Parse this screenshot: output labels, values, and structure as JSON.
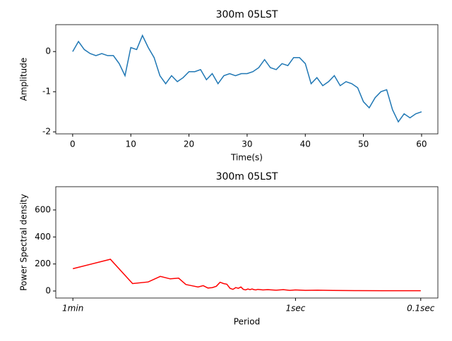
{
  "chart_data": [
    {
      "type": "line",
      "title": "300m 05LST",
      "xlabel": "Time(s)",
      "ylabel": "Amplitude",
      "color": "#1f77b4",
      "x": [
        0,
        1,
        2,
        3,
        4,
        5,
        6,
        7,
        8,
        9,
        10,
        11,
        12,
        13,
        14,
        15,
        16,
        17,
        18,
        19,
        20,
        21,
        22,
        23,
        24,
        25,
        26,
        27,
        28,
        29,
        30,
        31,
        32,
        33,
        34,
        35,
        36,
        37,
        38,
        39,
        40,
        41,
        42,
        43,
        44,
        45,
        46,
        47,
        48,
        49,
        50,
        51,
        52,
        53,
        54,
        55,
        56,
        57,
        58,
        59,
        60
      ],
      "values": [
        0,
        0.25,
        0.05,
        -0.05,
        -0.1,
        -0.05,
        -0.1,
        -0.1,
        -0.3,
        -0.6,
        0.1,
        0.05,
        0.4,
        0.1,
        -0.15,
        -0.6,
        -0.8,
        -0.6,
        -0.75,
        -0.65,
        -0.5,
        -0.5,
        -0.45,
        -0.7,
        -0.55,
        -0.8,
        -0.6,
        -0.55,
        -0.6,
        -0.55,
        -0.55,
        -0.5,
        -0.4,
        -0.2,
        -0.4,
        -0.45,
        -0.3,
        -0.35,
        -0.15,
        -0.15,
        -0.3,
        -0.8,
        -0.65,
        -0.85,
        -0.75,
        -0.6,
        -0.85,
        -0.75,
        -0.8,
        -0.9,
        -1.25,
        -1.4,
        -1.15,
        -1.0,
        -0.95,
        -1.45,
        -1.75,
        -1.55,
        -1.65,
        -1.55,
        -1.5
      ],
      "xlim": [
        -2.9,
        62.8
      ],
      "xticks": [
        0,
        10,
        20,
        30,
        40,
        50,
        60
      ],
      "ylim": [
        -2.05,
        0.67
      ],
      "yticks": [
        -2,
        -1,
        0
      ]
    },
    {
      "type": "line",
      "title": "300m 05LST",
      "xlabel": "Period",
      "ylabel": "Power Spectral density",
      "color": "#ff0000",
      "xlog": true,
      "x": [
        0.0167,
        0.0333,
        0.05,
        0.0667,
        0.0833,
        0.1,
        0.1167,
        0.1333,
        0.15,
        0.1667,
        0.1833,
        0.2,
        0.2167,
        0.2333,
        0.25,
        0.2667,
        0.2833,
        0.3,
        0.3167,
        0.3333,
        0.35,
        0.3667,
        0.3833,
        0.4,
        0.4167,
        0.4333,
        0.45,
        0.4667,
        0.4833,
        0.5,
        0.55,
        0.6,
        0.7,
        0.8,
        0.9,
        1,
        1.2,
        1.5,
        2,
        3,
        5,
        7,
        10
      ],
      "values": [
        165,
        235,
        55,
        67,
        108,
        90,
        95,
        48,
        38,
        30,
        40,
        22,
        25,
        35,
        65,
        55,
        50,
        20,
        12,
        25,
        20,
        30,
        12,
        8,
        15,
        10,
        15,
        10,
        8,
        12,
        8,
        10,
        6,
        10,
        5,
        8,
        5,
        6,
        4,
        3,
        2,
        2,
        2
      ],
      "xlim": [
        0.0122,
        13.7
      ],
      "xticks": [
        {
          "value": 0.0167,
          "label": "1min"
        },
        {
          "value": 1,
          "label": "1sec"
        },
        {
          "value": 10,
          "label": "0.1sec"
        }
      ],
      "ylim": [
        -52,
        772
      ],
      "yticks": [
        0,
        200,
        400,
        600
      ]
    }
  ]
}
